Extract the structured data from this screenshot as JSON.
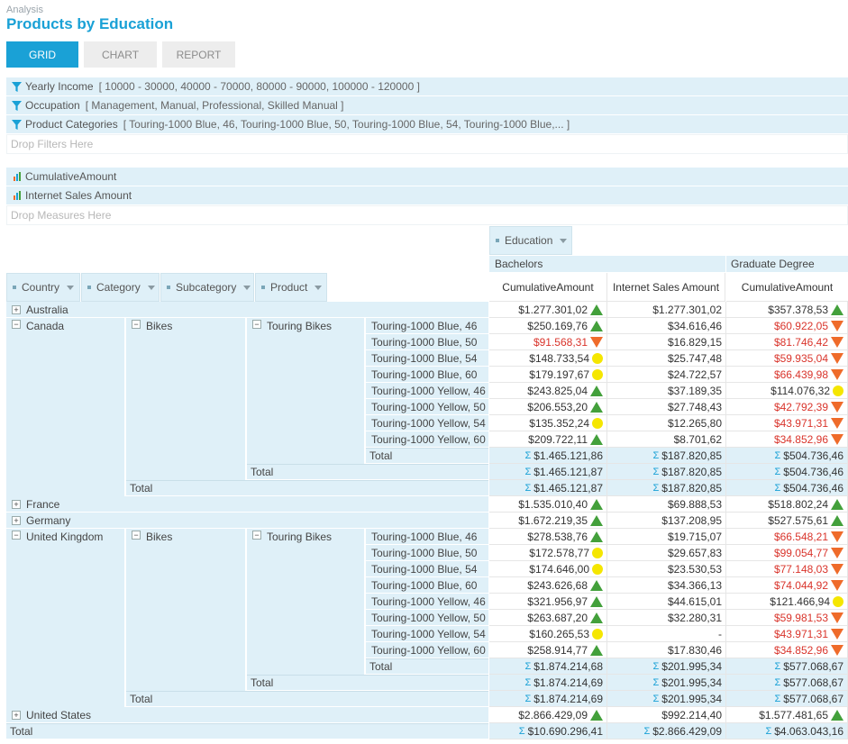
{
  "header": {
    "breadcrumb": "Analysis",
    "title": "Products by Education"
  },
  "tabs": [
    {
      "label": "GRID",
      "active": true
    },
    {
      "label": "CHART",
      "active": false
    },
    {
      "label": "REPORT",
      "active": false
    }
  ],
  "filters": [
    {
      "name": "Yearly Income",
      "value": "[ 10000 - 30000, 40000 - 70000, 80000 - 90000, 100000 - 120000 ]"
    },
    {
      "name": "Occupation",
      "value": "[ Management, Manual, Professional, Skilled Manual ]"
    },
    {
      "name": "Product Categories",
      "value": "[ Touring-1000 Blue, 46, Touring-1000 Blue, 50, Touring-1000 Blue, 54, Touring-1000 Blue,... ]"
    }
  ],
  "drop_filters": "Drop Filters Here",
  "measures": [
    "CumulativeAmount",
    "Internet Sales Amount"
  ],
  "drop_measures": "Drop Measures Here",
  "column_dimension": "Education",
  "education_levels": [
    "Bachelors",
    "Graduate Degree"
  ],
  "value_headers": [
    "CumulativeAmount",
    "Internet Sales Amount",
    "CumulativeAmount"
  ],
  "row_dimensions": [
    "Country",
    "Category",
    "Subcategory",
    "Product"
  ],
  "total_label": "Total",
  "colors": {
    "accent": "#1aa1d6",
    "header_bg": "#dff0f8",
    "negative": "#d9342b",
    "up": "#43a03b",
    "down": "#ef6b2a",
    "neutral": "#f5e600"
  },
  "rows": [
    {
      "type": "country",
      "country": "Australia",
      "expand": "+",
      "v": [
        "$1.277.301,02",
        "$1.277.301,02",
        "$357.378,53"
      ],
      "neg": [
        false,
        false,
        false
      ],
      "ind": [
        "up",
        "",
        "up"
      ]
    },
    {
      "type": "product",
      "country": "Canada",
      "expand": "−",
      "category": "Bikes",
      "subcategory": "Touring Bikes",
      "product": "Touring-1000 Blue, 46",
      "v": [
        "$250.169,76",
        "$34.616,46",
        "$60.922,05"
      ],
      "neg": [
        false,
        false,
        true
      ],
      "ind": [
        "up",
        "",
        "down"
      ]
    },
    {
      "type": "product",
      "product": "Touring-1000 Blue, 50",
      "v": [
        "$91.568,31",
        "$16.829,15",
        "$81.746,42"
      ],
      "neg": [
        true,
        false,
        true
      ],
      "ind": [
        "down",
        "",
        "down"
      ]
    },
    {
      "type": "product",
      "product": "Touring-1000 Blue, 54",
      "v": [
        "$148.733,54",
        "$25.747,48",
        "$59.935,04"
      ],
      "neg": [
        false,
        false,
        true
      ],
      "ind": [
        "mid",
        "",
        "down"
      ]
    },
    {
      "type": "product",
      "product": "Touring-1000 Blue, 60",
      "v": [
        "$179.197,67",
        "$24.722,57",
        "$66.439,98"
      ],
      "neg": [
        false,
        false,
        true
      ],
      "ind": [
        "mid",
        "",
        "down"
      ]
    },
    {
      "type": "product",
      "product": "Touring-1000 Yellow, 46",
      "v": [
        "$243.825,04",
        "$37.189,35",
        "$114.076,32"
      ],
      "neg": [
        false,
        false,
        false
      ],
      "ind": [
        "up",
        "",
        "mid"
      ]
    },
    {
      "type": "product",
      "product": "Touring-1000 Yellow, 50",
      "v": [
        "$206.553,20",
        "$27.748,43",
        "$42.792,39"
      ],
      "neg": [
        false,
        false,
        true
      ],
      "ind": [
        "up",
        "",
        "down"
      ]
    },
    {
      "type": "product",
      "product": "Touring-1000 Yellow, 54",
      "v": [
        "$135.352,24",
        "$12.265,80",
        "$43.971,31"
      ],
      "neg": [
        false,
        false,
        true
      ],
      "ind": [
        "mid",
        "",
        "down"
      ]
    },
    {
      "type": "product",
      "product": "Touring-1000 Yellow, 60",
      "v": [
        "$209.722,11",
        "$8.701,62",
        "$34.852,96"
      ],
      "neg": [
        false,
        false,
        true
      ],
      "ind": [
        "up",
        "",
        "down"
      ]
    },
    {
      "type": "total",
      "level": 3,
      "v": [
        "$1.465.121,86",
        "$187.820,85",
        "$504.736,46"
      ]
    },
    {
      "type": "total",
      "level": 2,
      "v": [
        "$1.465.121,87",
        "$187.820,85",
        "$504.736,46"
      ]
    },
    {
      "type": "total",
      "level": 1,
      "v": [
        "$1.465.121,87",
        "$187.820,85",
        "$504.736,46"
      ]
    },
    {
      "type": "country",
      "country": "France",
      "expand": "+",
      "v": [
        "$1.535.010,40",
        "$69.888,53",
        "$518.802,24"
      ],
      "neg": [
        false,
        false,
        false
      ],
      "ind": [
        "up",
        "",
        "up"
      ]
    },
    {
      "type": "country",
      "country": "Germany",
      "expand": "+",
      "v": [
        "$1.672.219,35",
        "$137.208,95",
        "$527.575,61"
      ],
      "neg": [
        false,
        false,
        false
      ],
      "ind": [
        "up",
        "",
        "up"
      ]
    },
    {
      "type": "product",
      "country": "United Kingdom",
      "expand": "−",
      "category": "Bikes",
      "subcategory": "Touring Bikes",
      "product": "Touring-1000 Blue, 46",
      "v": [
        "$278.538,76",
        "$19.715,07",
        "$66.548,21"
      ],
      "neg": [
        false,
        false,
        true
      ],
      "ind": [
        "up",
        "",
        "down"
      ]
    },
    {
      "type": "product",
      "product": "Touring-1000 Blue, 50",
      "v": [
        "$172.578,77",
        "$29.657,83",
        "$99.054,77"
      ],
      "neg": [
        false,
        false,
        true
      ],
      "ind": [
        "mid",
        "",
        "down"
      ]
    },
    {
      "type": "product",
      "product": "Touring-1000 Blue, 54",
      "v": [
        "$174.646,00",
        "$23.530,53",
        "$77.148,03"
      ],
      "neg": [
        false,
        false,
        true
      ],
      "ind": [
        "mid",
        "",
        "down"
      ]
    },
    {
      "type": "product",
      "product": "Touring-1000 Blue, 60",
      "v": [
        "$243.626,68",
        "$34.366,13",
        "$74.044,92"
      ],
      "neg": [
        false,
        false,
        true
      ],
      "ind": [
        "up",
        "",
        "down"
      ]
    },
    {
      "type": "product",
      "product": "Touring-1000 Yellow, 46",
      "v": [
        "$321.956,97",
        "$44.615,01",
        "$121.466,94"
      ],
      "neg": [
        false,
        false,
        false
      ],
      "ind": [
        "up",
        "",
        "mid"
      ]
    },
    {
      "type": "product",
      "product": "Touring-1000 Yellow, 50",
      "v": [
        "$263.687,20",
        "$32.280,31",
        "$59.981,53"
      ],
      "neg": [
        false,
        false,
        true
      ],
      "ind": [
        "up",
        "",
        "down"
      ]
    },
    {
      "type": "product",
      "product": "Touring-1000 Yellow, 54",
      "v": [
        "$160.265,53",
        "-",
        "$43.971,31"
      ],
      "neg": [
        false,
        false,
        true
      ],
      "ind": [
        "mid",
        "",
        "down"
      ]
    },
    {
      "type": "product",
      "product": "Touring-1000 Yellow, 60",
      "v": [
        "$258.914,77",
        "$17.830,46",
        "$34.852,96"
      ],
      "neg": [
        false,
        false,
        true
      ],
      "ind": [
        "up",
        "",
        "down"
      ]
    },
    {
      "type": "total",
      "level": 3,
      "v": [
        "$1.874.214,68",
        "$201.995,34",
        "$577.068,67"
      ]
    },
    {
      "type": "total",
      "level": 2,
      "v": [
        "$1.874.214,69",
        "$201.995,34",
        "$577.068,67"
      ]
    },
    {
      "type": "total",
      "level": 1,
      "v": [
        "$1.874.214,69",
        "$201.995,34",
        "$577.068,67"
      ]
    },
    {
      "type": "country",
      "country": "United States",
      "expand": "+",
      "v": [
        "$2.866.429,09",
        "$992.214,40",
        "$1.577.481,65"
      ],
      "neg": [
        false,
        false,
        false
      ],
      "ind": [
        "up",
        "",
        "up"
      ]
    },
    {
      "type": "total",
      "level": 0,
      "v": [
        "$10.690.296,41",
        "$2.866.429,09",
        "$4.063.043,16"
      ]
    }
  ]
}
